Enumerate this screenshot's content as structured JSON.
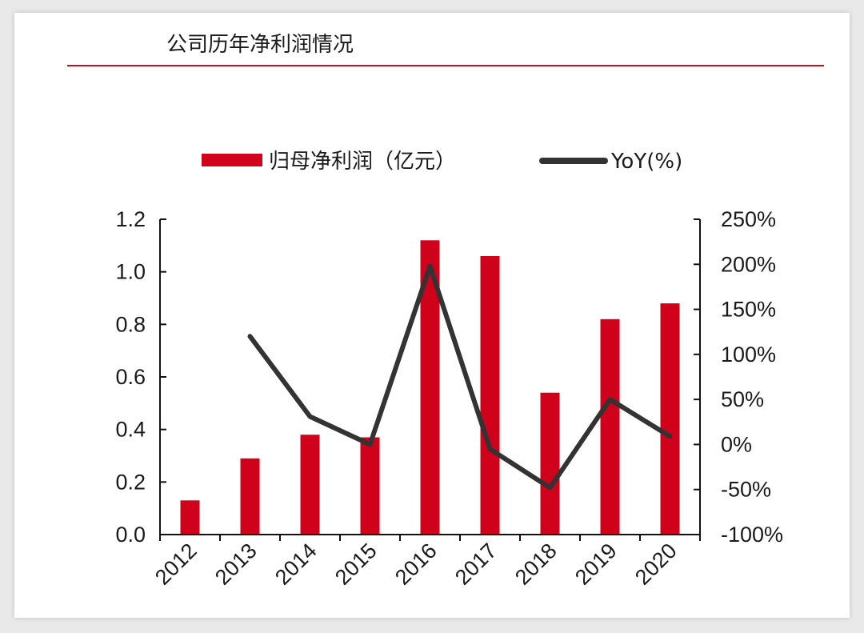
{
  "chart_data": {
    "type": "bar+line",
    "title": "公司历年净利润情况",
    "categories": [
      "2012",
      "2013",
      "2014",
      "2015",
      "2016",
      "2017",
      "2018",
      "2019",
      "2020"
    ],
    "series": [
      {
        "name": "归母净利润（亿元）",
        "type": "bar",
        "axis": "left",
        "values": [
          0.13,
          0.29,
          0.38,
          0.37,
          1.12,
          1.06,
          0.54,
          0.82,
          0.88
        ]
      },
      {
        "name": "YoY(%)",
        "type": "line",
        "axis": "right",
        "values": [
          null,
          120,
          31,
          0,
          198,
          -5,
          -48,
          50,
          9
        ]
      }
    ],
    "y_left": {
      "min": 0,
      "max": 1.2,
      "ticks": [
        "0.0",
        "0.2",
        "0.4",
        "0.6",
        "0.8",
        "1.0",
        "1.2"
      ]
    },
    "y_right": {
      "min": -100,
      "max": 250,
      "ticks": [
        "-100%",
        "-50%",
        "0%",
        "50%",
        "100%",
        "150%",
        "200%",
        "250%"
      ]
    },
    "grid": false,
    "legend_position": "top"
  },
  "colors": {
    "bar": "#d0021b",
    "line": "#333333",
    "title_rule": "#c0121f",
    "axis": "#111111"
  }
}
